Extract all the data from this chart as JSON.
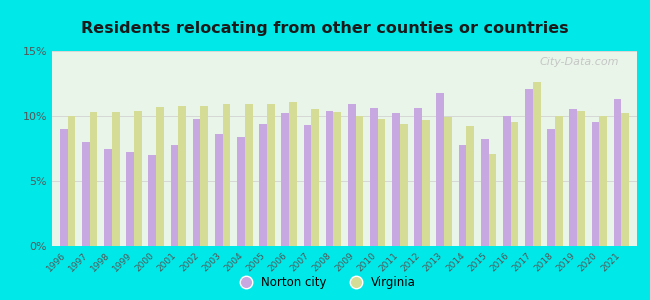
{
  "title": "Residents relocating from other counties or countries",
  "years": [
    1996,
    1997,
    1998,
    1999,
    2000,
    2001,
    2002,
    2003,
    2004,
    2005,
    2006,
    2007,
    2008,
    2009,
    2010,
    2011,
    2012,
    2013,
    2014,
    2015,
    2016,
    2017,
    2018,
    2019,
    2020,
    2021
  ],
  "norton_city": [
    9.0,
    8.0,
    7.5,
    7.2,
    7.0,
    7.8,
    9.8,
    8.6,
    8.4,
    9.4,
    10.2,
    9.3,
    10.4,
    10.9,
    10.6,
    10.2,
    10.6,
    11.8,
    7.8,
    8.2,
    10.0,
    12.1,
    9.0,
    10.5,
    9.5,
    11.3
  ],
  "virginia": [
    10.0,
    10.3,
    10.3,
    10.4,
    10.7,
    10.8,
    10.8,
    10.9,
    10.9,
    10.9,
    11.1,
    10.5,
    10.3,
    10.0,
    9.8,
    9.4,
    9.7,
    9.9,
    9.2,
    7.1,
    9.5,
    12.6,
    10.0,
    10.4,
    10.0,
    10.2
  ],
  "norton_color": "#c8a8e0",
  "virginia_color": "#d4dc96",
  "plot_bg_top": "#f0f8f0",
  "plot_bg_bottom": "#e0f4e0",
  "outer_background": "#00e8e8",
  "ylim": [
    0,
    15
  ],
  "yticks": [
    0,
    5,
    10,
    15
  ],
  "ytick_labels": [
    "0%",
    "5%",
    "10%",
    "15%"
  ],
  "title_fontsize": 11.5,
  "bar_width": 0.35,
  "legend_labels": [
    "Norton city",
    "Virginia"
  ],
  "watermark": "City-Data.com"
}
